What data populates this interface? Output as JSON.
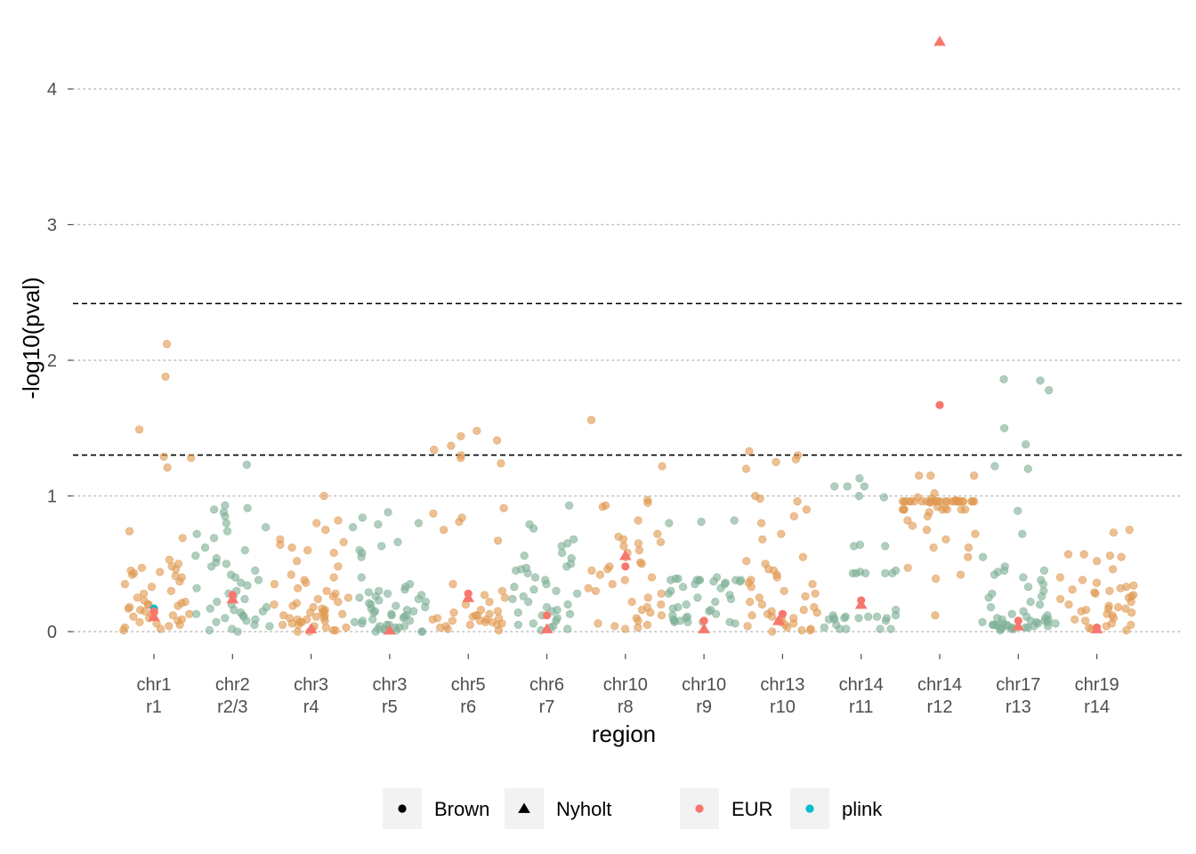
{
  "chart_data": {
    "type": "scatter",
    "title": "",
    "xlabel": "region",
    "ylabel": "-log10(pval)",
    "ylim": [
      -0.12,
      4.45
    ],
    "yticks": [
      0,
      1,
      2,
      3,
      4
    ],
    "grid": "horizontal dotted",
    "thresholds": [
      1.301,
      2.418
    ],
    "categories": [
      [
        "chr1",
        "r1"
      ],
      [
        "chr2",
        "r2/3"
      ],
      [
        "chr3",
        "r4"
      ],
      [
        "chr3",
        "r5"
      ],
      [
        "chr5",
        "r6"
      ],
      [
        "chr6",
        "r7"
      ],
      [
        "chr10",
        "r8"
      ],
      [
        "chr10",
        "r9"
      ],
      [
        "chr13",
        "r10"
      ],
      [
        "chr14",
        "r11"
      ],
      [
        "chr14",
        "r12"
      ],
      [
        "chr17",
        "r13"
      ],
      [
        "chr19",
        "r14"
      ]
    ],
    "background_colors": [
      "#e09950",
      "#7fb096"
    ],
    "background_points": [
      {
        "region": 0,
        "y": [
          1.88,
          1.49,
          1.29,
          1.28,
          1.21,
          2.12,
          0.74,
          0.69,
          0.53,
          0.5,
          0.48,
          0.47,
          0.46,
          0.45,
          0.44,
          0.43,
          0.42,
          0.41,
          0.4,
          0.37,
          0.35,
          0.33,
          0.3,
          0.28,
          0.25,
          0.23,
          0.22,
          0.21,
          0.2,
          0.2,
          0.19,
          0.18,
          0.17,
          0.16,
          0.15,
          0.14,
          0.13,
          0.13,
          0.12,
          0.11,
          0.1,
          0.09,
          0.08,
          0.07,
          0.06,
          0.05,
          0.04,
          0.03,
          0.02,
          0.01
        ]
      },
      {
        "region": 1,
        "y": [
          1.23,
          0.93,
          0.91,
          0.9,
          0.88,
          0.85,
          0.8,
          0.77,
          0.74,
          0.72,
          0.69,
          0.62,
          0.6,
          0.56,
          0.54,
          0.51,
          0.5,
          0.48,
          0.45,
          0.42,
          0.4,
          0.38,
          0.36,
          0.34,
          0.32,
          0.3,
          0.28,
          0.26,
          0.24,
          0.22,
          0.2,
          0.18,
          0.17,
          0.16,
          0.15,
          0.14,
          0.13,
          0.12,
          0.11,
          0.1,
          0.09,
          0.08,
          0.07,
          0.05,
          0.04,
          0.02,
          0.01,
          0.0
        ]
      },
      {
        "region": 2,
        "y": [
          1.0,
          0.82,
          0.8,
          0.75,
          0.68,
          0.66,
          0.64,
          0.62,
          0.6,
          0.58,
          0.52,
          0.48,
          0.42,
          0.4,
          0.38,
          0.36,
          0.35,
          0.32,
          0.3,
          0.28,
          0.26,
          0.25,
          0.24,
          0.22,
          0.21,
          0.2,
          0.19,
          0.18,
          0.17,
          0.16,
          0.15,
          0.14,
          0.14,
          0.13,
          0.12,
          0.12,
          0.11,
          0.1,
          0.1,
          0.09,
          0.09,
          0.08,
          0.07,
          0.07,
          0.06,
          0.05,
          0.05,
          0.04,
          0.03,
          0.03,
          0.02,
          0.01,
          0.01,
          0.0,
          0.0
        ]
      },
      {
        "region": 3,
        "y": [
          0.88,
          0.84,
          0.8,
          0.79,
          0.77,
          0.66,
          0.63,
          0.6,
          0.58,
          0.55,
          0.4,
          0.35,
          0.33,
          0.31,
          0.3,
          0.29,
          0.28,
          0.27,
          0.26,
          0.25,
          0.24,
          0.23,
          0.22,
          0.21,
          0.2,
          0.19,
          0.18,
          0.17,
          0.16,
          0.15,
          0.15,
          0.14,
          0.13,
          0.12,
          0.12,
          0.11,
          0.1,
          0.09,
          0.08,
          0.08,
          0.07,
          0.06,
          0.05,
          0.05,
          0.04,
          0.04,
          0.03,
          0.03,
          0.02,
          0.02,
          0.01,
          0.01,
          0.0,
          0.0,
          0.0
        ]
      },
      {
        "region": 4,
        "y": [
          1.48,
          1.44,
          1.41,
          1.37,
          1.34,
          1.3,
          1.28,
          1.24,
          0.91,
          0.87,
          0.84,
          0.81,
          0.75,
          0.67,
          0.35,
          0.3,
          0.27,
          0.25,
          0.22,
          0.2,
          0.16,
          0.15,
          0.14,
          0.13,
          0.12,
          0.12,
          0.11,
          0.1,
          0.1,
          0.09,
          0.09,
          0.08,
          0.08,
          0.07,
          0.07,
          0.06,
          0.05,
          0.05,
          0.04,
          0.03,
          0.02,
          0.01
        ]
      },
      {
        "region": 5,
        "y": [
          0.93,
          0.79,
          0.76,
          0.68,
          0.65,
          0.63,
          0.58,
          0.56,
          0.54,
          0.5,
          0.48,
          0.47,
          0.46,
          0.45,
          0.43,
          0.4,
          0.38,
          0.35,
          0.33,
          0.31,
          0.3,
          0.28,
          0.26,
          0.24,
          0.22,
          0.2,
          0.18,
          0.16,
          0.15,
          0.14,
          0.13,
          0.12,
          0.1,
          0.08,
          0.06,
          0.05,
          0.04,
          0.03,
          0.02,
          0.01
        ]
      },
      {
        "region": 6,
        "y": [
          1.56,
          1.22,
          0.97,
          0.95,
          0.93,
          0.92,
          0.82,
          0.72,
          0.7,
          0.68,
          0.66,
          0.65,
          0.63,
          0.6,
          0.58,
          0.55,
          0.51,
          0.5,
          0.48,
          0.46,
          0.45,
          0.42,
          0.4,
          0.38,
          0.35,
          0.32,
          0.3,
          0.28,
          0.25,
          0.22,
          0.2,
          0.18,
          0.16,
          0.14,
          0.12,
          0.1,
          0.08,
          0.06,
          0.05,
          0.04,
          0.03,
          0.02
        ]
      },
      {
        "region": 7,
        "y": [
          0.82,
          0.81,
          0.8,
          0.4,
          0.39,
          0.39,
          0.38,
          0.38,
          0.38,
          0.38,
          0.38,
          0.38,
          0.37,
          0.37,
          0.36,
          0.35,
          0.35,
          0.33,
          0.32,
          0.3,
          0.28,
          0.27,
          0.25,
          0.24,
          0.22,
          0.2,
          0.18,
          0.17,
          0.16,
          0.15,
          0.13,
          0.12,
          0.11,
          0.1,
          0.09,
          0.08,
          0.08,
          0.07,
          0.07,
          0.07,
          0.07,
          0.06
        ]
      },
      {
        "region": 8,
        "y": [
          1.33,
          1.3,
          1.27,
          1.25,
          1.2,
          1.0,
          0.98,
          0.96,
          0.9,
          0.85,
          0.8,
          0.72,
          0.68,
          0.55,
          0.52,
          0.5,
          0.46,
          0.45,
          0.42,
          0.4,
          0.38,
          0.36,
          0.35,
          0.33,
          0.3,
          0.28,
          0.26,
          0.25,
          0.22,
          0.2,
          0.18,
          0.16,
          0.15,
          0.14,
          0.13,
          0.12,
          0.11,
          0.1,
          0.09,
          0.08,
          0.07,
          0.06,
          0.05,
          0.04,
          0.03,
          0.02,
          0.01,
          0.01,
          0.0
        ]
      },
      {
        "region": 9,
        "y": [
          1.13,
          1.07,
          1.07,
          1.07,
          1.0,
          0.99,
          0.64,
          0.63,
          0.63,
          0.45,
          0.44,
          0.43,
          0.43,
          0.43,
          0.43,
          0.43,
          0.16,
          0.12,
          0.12,
          0.11,
          0.11,
          0.11,
          0.1,
          0.1,
          0.1,
          0.1,
          0.09,
          0.09,
          0.08,
          0.05,
          0.03,
          0.02,
          0.02,
          0.02,
          0.02
        ]
      },
      {
        "region": 10,
        "y": [
          1.15,
          1.15,
          1.15,
          1.02,
          0.99,
          0.98,
          0.97,
          0.96,
          0.96,
          0.96,
          0.96,
          0.96,
          0.96,
          0.96,
          0.96,
          0.96,
          0.96,
          0.96,
          0.96,
          0.96,
          0.96,
          0.96,
          0.96,
          0.96,
          0.96,
          0.96,
          0.96,
          0.96,
          0.96,
          0.96,
          0.96,
          0.96,
          0.96,
          0.96,
          0.95,
          0.92,
          0.91,
          0.9,
          0.9,
          0.9,
          0.9,
          0.9,
          0.9,
          0.9,
          0.88,
          0.85,
          0.82,
          0.78,
          0.75,
          0.72,
          0.68,
          0.62,
          0.62,
          0.55,
          0.47,
          0.42,
          0.39,
          0.12
        ]
      },
      {
        "region": 11,
        "y": [
          1.86,
          1.85,
          1.78,
          1.5,
          1.38,
          1.22,
          1.2,
          0.89,
          0.72,
          0.55,
          0.48,
          0.45,
          0.45,
          0.44,
          0.42,
          0.4,
          0.38,
          0.35,
          0.33,
          0.3,
          0.28,
          0.26,
          0.25,
          0.22,
          0.2,
          0.18,
          0.15,
          0.13,
          0.12,
          0.11,
          0.1,
          0.1,
          0.09,
          0.09,
          0.08,
          0.08,
          0.07,
          0.07,
          0.07,
          0.06,
          0.06,
          0.06,
          0.05,
          0.05,
          0.05,
          0.05,
          0.04,
          0.04,
          0.04,
          0.04,
          0.03,
          0.03,
          0.03,
          0.03,
          0.02,
          0.02,
          0.02,
          0.01
        ]
      },
      {
        "region": 12,
        "y": [
          0.75,
          0.73,
          0.57,
          0.57,
          0.56,
          0.55,
          0.52,
          0.46,
          0.4,
          0.38,
          0.36,
          0.34,
          0.33,
          0.32,
          0.31,
          0.3,
          0.29,
          0.28,
          0.27,
          0.26,
          0.25,
          0.24,
          0.22,
          0.2,
          0.19,
          0.18,
          0.17,
          0.17,
          0.16,
          0.15,
          0.14,
          0.13,
          0.12,
          0.1,
          0.09,
          0.08,
          0.06,
          0.05,
          0.04,
          0.03,
          0.02,
          0.01
        ]
      }
    ],
    "highlight_points": [
      {
        "region": 0,
        "dx": 0.0,
        "y": 0.17,
        "shape": "circle",
        "color": "#00bcd0"
      },
      {
        "region": 0,
        "dx": 0.0,
        "y": 0.15,
        "shape": "circle",
        "color": "#f8766d"
      },
      {
        "region": 0,
        "dx": 0.0,
        "y": 0.11,
        "shape": "triangle",
        "color": "#f8766d"
      },
      {
        "region": 1,
        "dx": 0.0,
        "y": 0.27,
        "shape": "circle",
        "color": "#f8766d"
      },
      {
        "region": 1,
        "dx": 0.0,
        "y": 0.24,
        "shape": "triangle",
        "color": "#f8766d"
      },
      {
        "region": 2,
        "dx": 0.0,
        "y": 0.02,
        "shape": "triangle",
        "color": "#f8766d"
      },
      {
        "region": 3,
        "dx": 0.0,
        "y": 0.01,
        "shape": "triangle",
        "color": "#f8766d"
      },
      {
        "region": 4,
        "dx": 0.0,
        "y": 0.28,
        "shape": "circle",
        "color": "#f8766d"
      },
      {
        "region": 4,
        "dx": 0.0,
        "y": 0.25,
        "shape": "triangle",
        "color": "#f8766d"
      },
      {
        "region": 5,
        "dx": 0.0,
        "y": 0.12,
        "shape": "circle",
        "color": "#f8766d"
      },
      {
        "region": 5,
        "dx": 0.0,
        "y": 0.02,
        "shape": "triangle",
        "color": "#f8766d"
      },
      {
        "region": 6,
        "dx": 0.0,
        "y": 0.56,
        "shape": "triangle",
        "color": "#f8766d"
      },
      {
        "region": 6,
        "dx": 0.0,
        "y": 0.48,
        "shape": "circle",
        "color": "#f8766d"
      },
      {
        "region": 7,
        "dx": 0.0,
        "y": 0.08,
        "shape": "circle",
        "color": "#f8766d"
      },
      {
        "region": 7,
        "dx": 0.0,
        "y": 0.02,
        "shape": "triangle",
        "color": "#f8766d"
      },
      {
        "region": 8,
        "dx": 0.0,
        "y": 0.13,
        "shape": "circle",
        "color": "#f8766d"
      },
      {
        "region": 8,
        "dx": -0.05,
        "y": 0.08,
        "shape": "triangle",
        "color": "#f8766d"
      },
      {
        "region": 9,
        "dx": 0.0,
        "y": 0.23,
        "shape": "circle",
        "color": "#f8766d"
      },
      {
        "region": 9,
        "dx": 0.0,
        "y": 0.2,
        "shape": "triangle",
        "color": "#f8766d"
      },
      {
        "region": 10,
        "dx": 0.0,
        "y": 4.35,
        "shape": "triangle",
        "color": "#f8766d"
      },
      {
        "region": 10,
        "dx": 0.0,
        "y": 1.67,
        "shape": "circle",
        "color": "#f8766d"
      },
      {
        "region": 11,
        "dx": 0.0,
        "y": 0.08,
        "shape": "circle",
        "color": "#f8766d"
      },
      {
        "region": 11,
        "dx": 0.0,
        "y": 0.04,
        "shape": "triangle",
        "color": "#f8766d"
      },
      {
        "region": 12,
        "dx": 0.0,
        "y": 0.03,
        "shape": "circle",
        "color": "#f8766d"
      },
      {
        "region": 12,
        "dx": 0.0,
        "y": 0.02,
        "shape": "triangle",
        "color": "#f8766d"
      }
    ],
    "legend": {
      "position": "bottom",
      "shape_items": [
        {
          "label": "Brown",
          "shape": "circle"
        },
        {
          "label": "Nyholt",
          "shape": "triangle"
        }
      ],
      "color_items": [
        {
          "label": "EUR",
          "color": "#f8766d"
        },
        {
          "label": "plink",
          "color": "#00bcd0"
        }
      ]
    }
  }
}
